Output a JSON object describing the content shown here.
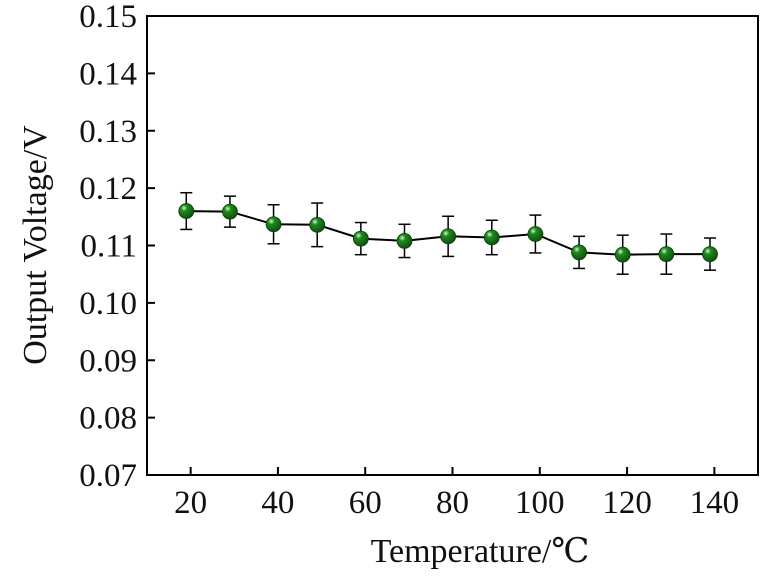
{
  "chart_data": {
    "type": "line",
    "title": "",
    "xlabel": "Temperature/℃",
    "ylabel": "Output Voltage/V",
    "xlim": [
      10,
      150
    ],
    "ylim": [
      0.07,
      0.15
    ],
    "x_ticks": [
      "20",
      "40",
      "60",
      "80",
      "100",
      "120",
      "140"
    ],
    "y_ticks": [
      "0.07",
      "0.08",
      "0.09",
      "0.10",
      "0.11",
      "0.12",
      "0.13",
      "0.14",
      "0.15"
    ],
    "grid": false,
    "legend": "none",
    "marker_color": "#1f8a1f",
    "line_color": "#000000",
    "series": [
      {
        "x": [
          19,
          29,
          39,
          49,
          59,
          69,
          79,
          89,
          99,
          109,
          119,
          129,
          139
        ],
        "y": [
          0.116,
          0.1159,
          0.1137,
          0.1136,
          0.1112,
          0.1108,
          0.1116,
          0.1114,
          0.112,
          0.1088,
          0.1084,
          0.1085,
          0.1085
        ],
        "error": [
          0.0032,
          0.0027,
          0.0034,
          0.0038,
          0.0028,
          0.0029,
          0.0035,
          0.003,
          0.0033,
          0.0028,
          0.0034,
          0.0035,
          0.0028
        ]
      }
    ]
  }
}
